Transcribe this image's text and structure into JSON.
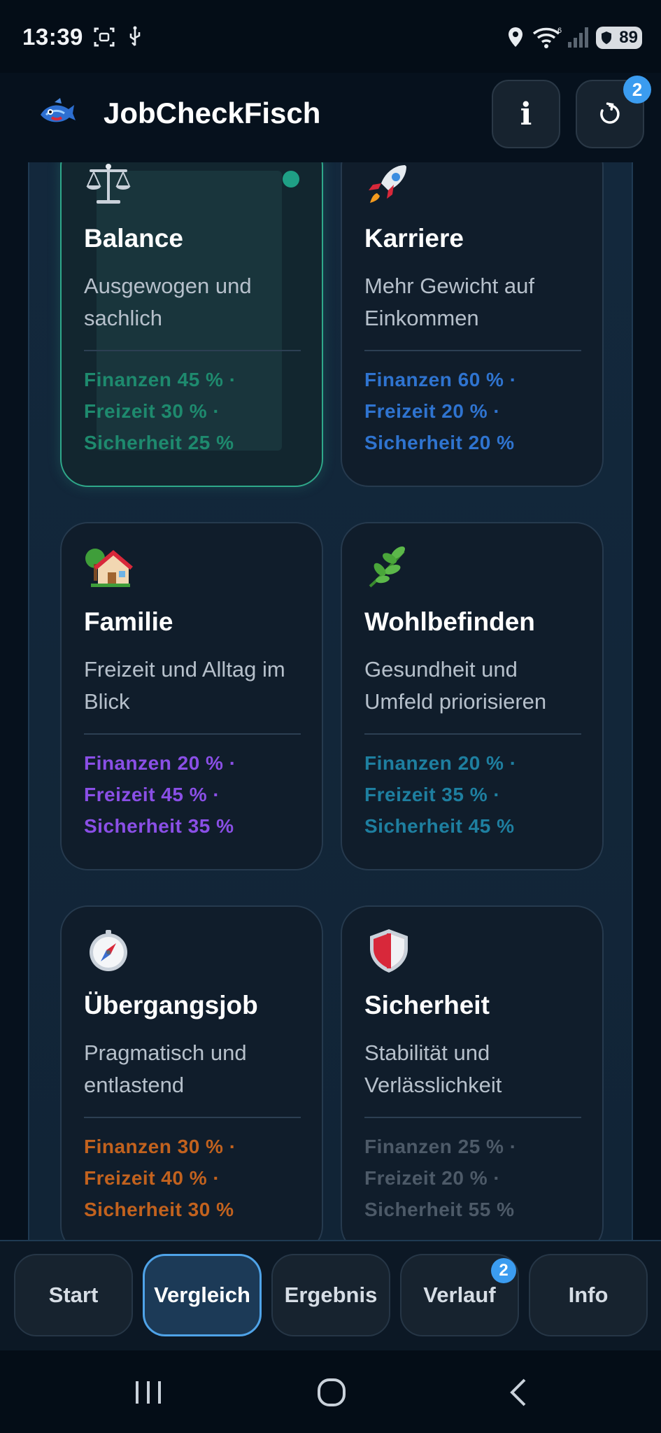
{
  "status_bar": {
    "time": "13:39",
    "battery": "89",
    "network_label": "6"
  },
  "header": {
    "title": "JobCheckFisch",
    "info_label": "i",
    "reset_badge": "2"
  },
  "cards": [
    {
      "title": "Balance",
      "description": "Ausgewogen und sachlich",
      "weights": [
        "Finanzen 45 % ·",
        "Freizeit 30 % ·",
        "Sicherheit 25 %"
      ],
      "color": "#1e8a6e",
      "icon": "scale-icon",
      "selected": true
    },
    {
      "title": "Karriere",
      "description": "Mehr Gewicht auf Einkommen",
      "weights": [
        "Finanzen 60 % ·",
        "Freizeit 20 % ·",
        "Sicherheit 20 %"
      ],
      "color": "#2f74d0",
      "icon": "rocket-icon",
      "selected": false
    },
    {
      "title": "Familie",
      "description": "Freizeit und Alltag im Blick",
      "weights": [
        "Finanzen 20 % ·",
        "Freizeit 45 % ·",
        "Sicherheit 35 %"
      ],
      "color": "#8a4fe6",
      "icon": "house-icon",
      "selected": false
    },
    {
      "title": "Wohlbefinden",
      "description": "Gesundheit und Umfeld priorisieren",
      "weights": [
        "Finanzen 20 % ·",
        "Freizeit 35 % ·",
        "Sicherheit 45 %"
      ],
      "color": "#1e7fa0",
      "icon": "herb-icon",
      "selected": false
    },
    {
      "title": "Übergangsjob",
      "description": "Pragmatisch und entlastend",
      "weights": [
        "Finanzen 30 % ·",
        "Freizeit 40 % ·",
        "Sicherheit 30 %"
      ],
      "color": "#c2621e",
      "icon": "compass-icon",
      "selected": false
    },
    {
      "title": "Sicherheit",
      "description": "Stabilität und Verlässlichkeit",
      "weights": [
        "Finanzen 25 % ·",
        "Freizeit 20 % ·",
        "Sicherheit 55 %"
      ],
      "color": "#4d5a68",
      "icon": "shield-icon",
      "selected": false
    }
  ],
  "bottom_nav": {
    "items": [
      {
        "label": "Start"
      },
      {
        "label": "Vergleich"
      },
      {
        "label": "Ergebnis"
      },
      {
        "label": "Verlauf"
      },
      {
        "label": "Info"
      }
    ],
    "verlauf_badge": "2"
  }
}
